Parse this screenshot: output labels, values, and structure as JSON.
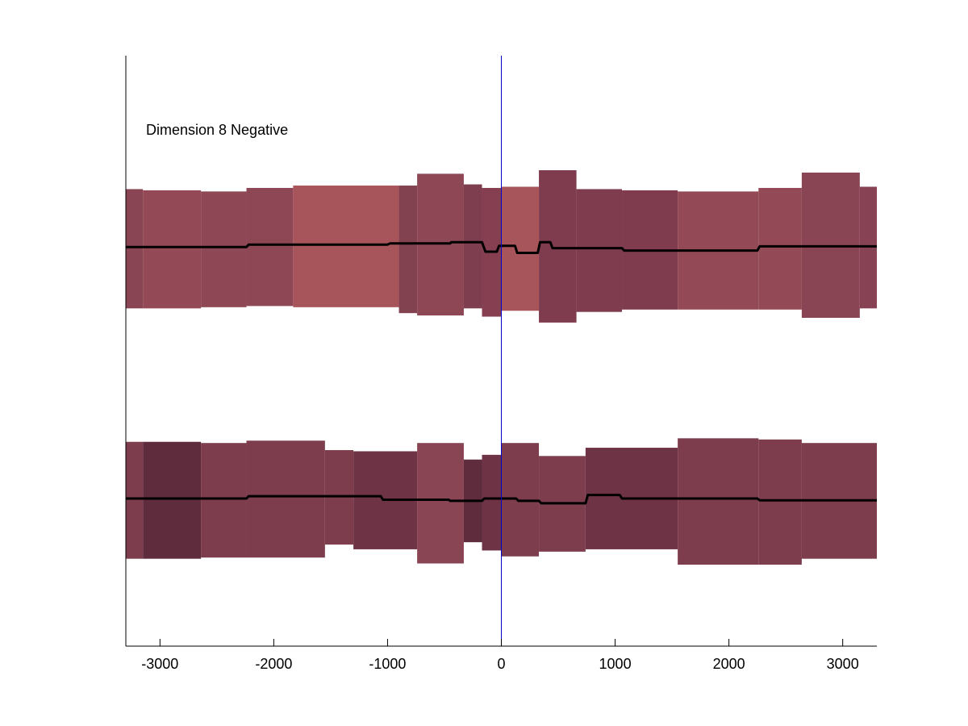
{
  "chart_data": {
    "type": "area",
    "title": "",
    "xlabel": "",
    "ylabel": "",
    "annotation": "Dimension 8 Negative",
    "xlim": [
      -3300,
      3300
    ],
    "ylim": [
      0,
      10
    ],
    "xticks": [
      -3000,
      -2000,
      -1000,
      0,
      1000,
      2000,
      3000
    ],
    "xtick_labels": [
      "-3000",
      "-2000",
      "-1000",
      "0",
      "1000",
      "2000",
      "3000"
    ],
    "yticks_shown": false,
    "reference_line_x": 0,
    "reference_line_color": "#0000cc",
    "line_color": "#000000",
    "tracks": [
      {
        "bands": [
          {
            "x0": -3300,
            "x1": -3150,
            "lo": 5.72,
            "hi": 7.74,
            "color": "#8a4554"
          },
          {
            "x0": -3150,
            "x1": -2640,
            "lo": 5.72,
            "hi": 7.72,
            "color": "#944a56"
          },
          {
            "x0": -2640,
            "x1": -2240,
            "lo": 5.74,
            "hi": 7.7,
            "color": "#8e4754"
          },
          {
            "x0": -2240,
            "x1": -1830,
            "lo": 5.76,
            "hi": 7.76,
            "color": "#8e4754"
          },
          {
            "x0": -1830,
            "x1": -900,
            "lo": 5.74,
            "hi": 7.8,
            "color": "#a8545b"
          },
          {
            "x0": -900,
            "x1": -740,
            "lo": 5.64,
            "hi": 7.8,
            "color": "#834250"
          },
          {
            "x0": -740,
            "x1": -330,
            "lo": 5.6,
            "hi": 8.0,
            "color": "#8e4754"
          },
          {
            "x0": -330,
            "x1": -170,
            "lo": 5.72,
            "hi": 7.82,
            "color": "#7f3e4f"
          },
          {
            "x0": -170,
            "x1": 0,
            "lo": 5.58,
            "hi": 7.76,
            "color": "#853f50"
          },
          {
            "x0": 0,
            "x1": 330,
            "lo": 5.68,
            "hi": 7.78,
            "color": "#a8545b"
          },
          {
            "x0": 330,
            "x1": 660,
            "lo": 5.48,
            "hi": 8.06,
            "color": "#7f3c4e"
          },
          {
            "x0": 660,
            "x1": 1060,
            "lo": 5.66,
            "hi": 7.74,
            "color": "#7f3c4e"
          },
          {
            "x0": 1060,
            "x1": 1550,
            "lo": 5.7,
            "hi": 7.72,
            "color": "#7f3c4e"
          },
          {
            "x0": 1550,
            "x1": 2260,
            "lo": 5.7,
            "hi": 7.7,
            "color": "#944a56"
          },
          {
            "x0": 2260,
            "x1": 2640,
            "lo": 5.7,
            "hi": 7.76,
            "color": "#944a56"
          },
          {
            "x0": 2640,
            "x1": 3150,
            "lo": 5.56,
            "hi": 8.02,
            "color": "#8a4554"
          },
          {
            "x0": 3150,
            "x1": 3300,
            "lo": 5.72,
            "hi": 7.78,
            "color": "#874353"
          }
        ],
        "line": {
          "x": [
            -3300,
            -2240,
            -2220,
            -1000,
            -980,
            -450,
            -440,
            -170,
            -140,
            -40,
            -20,
            120,
            140,
            320,
            340,
            430,
            450,
            1060,
            1080,
            2250,
            2270,
            3300
          ],
          "y": [
            6.76,
            6.76,
            6.8,
            6.8,
            6.82,
            6.82,
            6.84,
            6.84,
            6.68,
            6.68,
            6.78,
            6.78,
            6.66,
            6.66,
            6.84,
            6.84,
            6.74,
            6.74,
            6.7,
            6.7,
            6.77,
            6.77
          ]
        }
      },
      {
        "bands": [
          {
            "x0": -3300,
            "x1": -3150,
            "lo": 1.48,
            "hi": 3.46,
            "color": "#7d3d4d"
          },
          {
            "x0": -3150,
            "x1": -2640,
            "lo": 1.48,
            "hi": 3.46,
            "color": "#5e2c3c"
          },
          {
            "x0": -2640,
            "x1": -2240,
            "lo": 1.5,
            "hi": 3.44,
            "color": "#7d3d4d"
          },
          {
            "x0": -2240,
            "x1": -1550,
            "lo": 1.5,
            "hi": 3.48,
            "color": "#7d3d4d"
          },
          {
            "x0": -1550,
            "x1": -1300,
            "lo": 1.72,
            "hi": 3.32,
            "color": "#7d3d4d"
          },
          {
            "x0": -1300,
            "x1": -740,
            "lo": 1.64,
            "hi": 3.3,
            "color": "#6e3446"
          },
          {
            "x0": -740,
            "x1": -330,
            "lo": 1.4,
            "hi": 3.44,
            "color": "#8a4554"
          },
          {
            "x0": -330,
            "x1": -170,
            "lo": 1.76,
            "hi": 3.16,
            "color": "#5e2c3c"
          },
          {
            "x0": -170,
            "x1": 0,
            "lo": 1.62,
            "hi": 3.24,
            "color": "#6e3446"
          },
          {
            "x0": 0,
            "x1": 330,
            "lo": 1.52,
            "hi": 3.44,
            "color": "#7d3d4d"
          },
          {
            "x0": 330,
            "x1": 740,
            "lo": 1.6,
            "hi": 3.22,
            "color": "#7d3d4d"
          },
          {
            "x0": 740,
            "x1": 1550,
            "lo": 1.64,
            "hi": 3.36,
            "color": "#6e3446"
          },
          {
            "x0": 1550,
            "x1": 2260,
            "lo": 1.38,
            "hi": 3.52,
            "color": "#7d3d4d"
          },
          {
            "x0": 2260,
            "x1": 2640,
            "lo": 1.38,
            "hi": 3.5,
            "color": "#7d3d4d"
          },
          {
            "x0": 2640,
            "x1": 3300,
            "lo": 1.48,
            "hi": 3.44,
            "color": "#7d3d4d"
          }
        ],
        "line": {
          "x": [
            -3300,
            -2240,
            -2220,
            -1060,
            -1040,
            -460,
            -450,
            -170,
            -150,
            130,
            150,
            330,
            350,
            740,
            760,
            1040,
            1060,
            2250,
            2270,
            3300
          ],
          "y": [
            2.5,
            2.5,
            2.54,
            2.54,
            2.48,
            2.48,
            2.46,
            2.46,
            2.5,
            2.5,
            2.46,
            2.46,
            2.42,
            2.42,
            2.56,
            2.56,
            2.5,
            2.5,
            2.47,
            2.47
          ]
        }
      }
    ]
  }
}
